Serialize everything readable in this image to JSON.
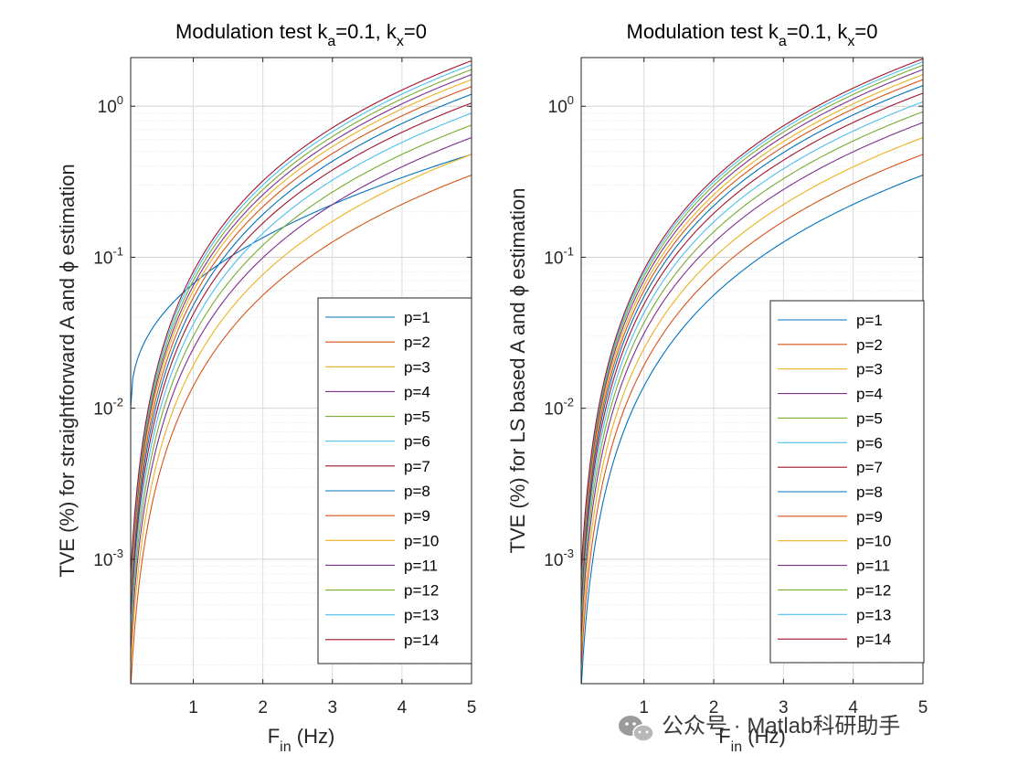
{
  "figure": {
    "watermark": {
      "text": "公众号 · Matlab科研助手",
      "icon": "wechat-icon"
    }
  },
  "chart_data": [
    {
      "type": "line",
      "title": {
        "main": "Modulation test k",
        "sub1": "a",
        "mid": "=0.1,  k",
        "sub2": "x",
        "end": "=0"
      },
      "xlabel": {
        "main": "F",
        "sub": "in",
        "rest": " (Hz)"
      },
      "ylabel": "TVE (%) for  straightforward A and ϕ estimation",
      "yscale": "log",
      "xlim": [
        0.1,
        5
      ],
      "ylim": [
        0.00015,
        2.1
      ],
      "xticks": [
        1,
        2,
        3,
        4,
        5
      ],
      "yticks": [
        {
          "base": "10",
          "exp": "-3",
          "value": 0.001
        },
        {
          "base": "10",
          "exp": "-2",
          "value": 0.01
        },
        {
          "base": "10",
          "exp": "-1",
          "value": 0.1
        },
        {
          "base": "10",
          "exp": "0",
          "value": 1
        }
      ],
      "grid": true,
      "legend_position": "bottom-right",
      "series": [
        {
          "name": "p=1",
          "color": "#0072BD",
          "at_5hz": 0.48,
          "shape": "saturating",
          "at_0_1hz": 0.01
        },
        {
          "name": "p=2",
          "color": "#D95319",
          "at_5hz": 0.35
        },
        {
          "name": "p=3",
          "color": "#EDB120",
          "at_5hz": 0.48
        },
        {
          "name": "p=4",
          "color": "#7E2F8E",
          "at_5hz": 0.62
        },
        {
          "name": "p=5",
          "color": "#77AC30",
          "at_5hz": 0.75
        },
        {
          "name": "p=6",
          "color": "#4DBEEE",
          "at_5hz": 0.9
        },
        {
          "name": "p=7",
          "color": "#A2142F",
          "at_5hz": 1.05
        },
        {
          "name": "p=8",
          "color": "#0072BD",
          "at_5hz": 1.2
        },
        {
          "name": "p=9",
          "color": "#D95319",
          "at_5hz": 1.35
        },
        {
          "name": "p=10",
          "color": "#EDB120",
          "at_5hz": 1.5
        },
        {
          "name": "p=11",
          "color": "#7E2F8E",
          "at_5hz": 1.62
        },
        {
          "name": "p=12",
          "color": "#77AC30",
          "at_5hz": 1.75
        },
        {
          "name": "p=13",
          "color": "#4DBEEE",
          "at_5hz": 1.88
        },
        {
          "name": "p=14",
          "color": "#A2142F",
          "at_5hz": 2.0
        }
      ]
    },
    {
      "type": "line",
      "title": {
        "main": "Modulation test k",
        "sub1": "a",
        "mid": "=0.1,  k",
        "sub2": "x",
        "end": "=0"
      },
      "xlabel": {
        "main": "F",
        "sub": "in",
        "rest": " (Hz)"
      },
      "ylabel": "TVE (%) for LS based A and ϕ estimation",
      "yscale": "log",
      "xlim": [
        0.1,
        5
      ],
      "ylim": [
        0.00015,
        2.1
      ],
      "xticks": [
        1,
        2,
        3,
        4,
        5
      ],
      "yticks": [
        {
          "base": "10",
          "exp": "-3",
          "value": 0.001
        },
        {
          "base": "10",
          "exp": "-2",
          "value": 0.01
        },
        {
          "base": "10",
          "exp": "-1",
          "value": 0.1
        },
        {
          "base": "10",
          "exp": "0",
          "value": 1
        }
      ],
      "grid": true,
      "legend_position": "bottom-right",
      "series": [
        {
          "name": "p=1",
          "color": "#0072BD",
          "at_5hz": 0.35
        },
        {
          "name": "p=2",
          "color": "#D95319",
          "at_5hz": 0.48
        },
        {
          "name": "p=3",
          "color": "#EDB120",
          "at_5hz": 0.62
        },
        {
          "name": "p=4",
          "color": "#7E2F8E",
          "at_5hz": 0.78
        },
        {
          "name": "p=5",
          "color": "#77AC30",
          "at_5hz": 0.92
        },
        {
          "name": "p=6",
          "color": "#4DBEEE",
          "at_5hz": 1.07
        },
        {
          "name": "p=7",
          "color": "#A2142F",
          "at_5hz": 1.22
        },
        {
          "name": "p=8",
          "color": "#0072BD",
          "at_5hz": 1.37
        },
        {
          "name": "p=9",
          "color": "#D95319",
          "at_5hz": 1.5
        },
        {
          "name": "p=10",
          "color": "#EDB120",
          "at_5hz": 1.62
        },
        {
          "name": "p=11",
          "color": "#7E2F8E",
          "at_5hz": 1.75
        },
        {
          "name": "p=12",
          "color": "#77AC30",
          "at_5hz": 1.87
        },
        {
          "name": "p=13",
          "color": "#4DBEEE",
          "at_5hz": 1.97
        },
        {
          "name": "p=14",
          "color": "#A2142F",
          "at_5hz": 2.06
        }
      ]
    }
  ]
}
